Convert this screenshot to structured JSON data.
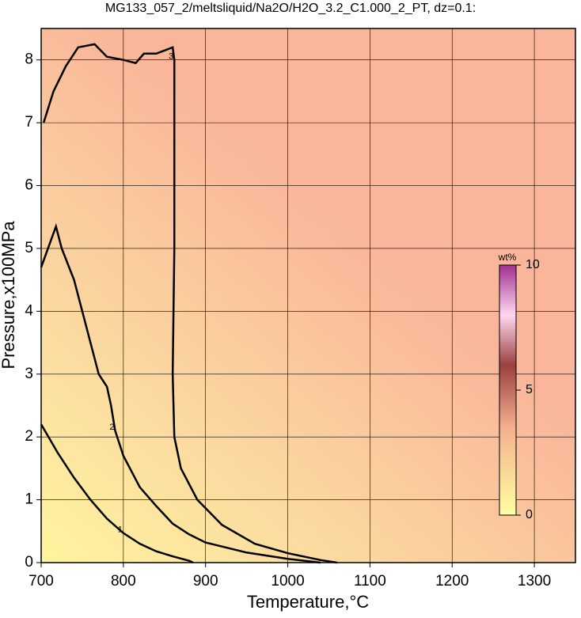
{
  "chart_data": {
    "type": "contour",
    "title": "MG133_057_2/meltsliquid/Na2O/H2O_3.2_C1.000_2_PT, dz=0.1:",
    "x_label": "Temperature,°C",
    "y_label": "Pressure,x100MPa",
    "xlim": [
      700,
      1350
    ],
    "xticks": [
      700,
      800,
      900,
      1000,
      1100,
      1200,
      1300
    ],
    "ylim": [
      0,
      8.5
    ],
    "yticks": [
      0,
      1,
      2,
      3,
      4,
      5,
      6,
      7,
      8
    ],
    "grid": true,
    "contours": [
      {
        "level": 1,
        "x": [
          700,
          720,
          740,
          760,
          780,
          800,
          820,
          840,
          860,
          880,
          885
        ],
        "y": [
          2.2,
          1.75,
          1.35,
          1.0,
          0.7,
          0.47,
          0.3,
          0.18,
          0.1,
          0.03,
          0
        ]
      },
      {
        "level": 2,
        "x": [
          700,
          718,
          725,
          740,
          750,
          760,
          770,
          780,
          785,
          790,
          800,
          820,
          840,
          860,
          880,
          900,
          950,
          1000,
          1040
        ],
        "y": [
          4.7,
          5.35,
          5.0,
          4.5,
          4.0,
          3.5,
          3.0,
          2.8,
          2.5,
          2.1,
          1.7,
          1.2,
          0.9,
          0.62,
          0.45,
          0.32,
          0.16,
          0.06,
          0
        ]
      },
      {
        "level": 3,
        "x": [
          703,
          715,
          730,
          745,
          765,
          780,
          800,
          815,
          825,
          840,
          860,
          862,
          862,
          860,
          862,
          870,
          890,
          920,
          960,
          1000,
          1040,
          1060
        ],
        "y": [
          7.0,
          7.5,
          7.9,
          8.2,
          8.25,
          8.05,
          8.0,
          7.95,
          8.1,
          8.1,
          8.2,
          8.0,
          5.0,
          3.0,
          2.0,
          1.5,
          1.0,
          0.6,
          0.3,
          0.15,
          0.04,
          0
        ]
      }
    ],
    "colorbar": {
      "label": "wt%",
      "lim": [
        0,
        10
      ],
      "ticks": [
        0,
        5,
        10
      ]
    }
  }
}
